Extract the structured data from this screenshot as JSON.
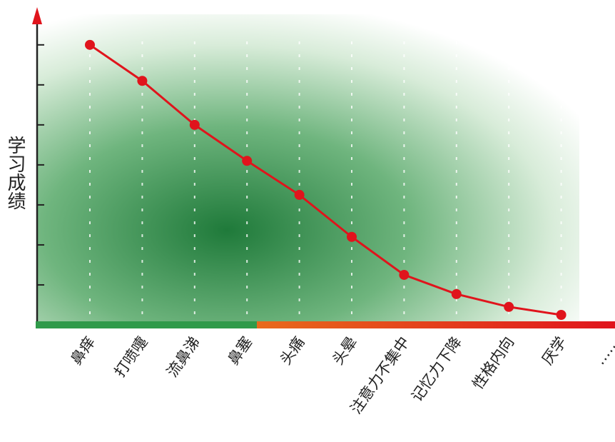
{
  "chart_data": {
    "type": "line",
    "y_label": "学习成绩",
    "categories": [
      "鼻痒",
      "打喷嚏",
      "流鼻涕",
      "鼻塞",
      "头痛",
      "头晕",
      "注意力不集中",
      "记忆力下降",
      "性格内向",
      "厌学",
      "……"
    ],
    "values": [
      7.0,
      6.1,
      5.0,
      4.1,
      3.25,
      2.2,
      1.25,
      0.77,
      0.45,
      0.25,
      null
    ],
    "color": "#e0141c",
    "ylim": [
      0,
      7.8
    ],
    "yticks": [
      1,
      2,
      3,
      4,
      5,
      6,
      7
    ]
  }
}
